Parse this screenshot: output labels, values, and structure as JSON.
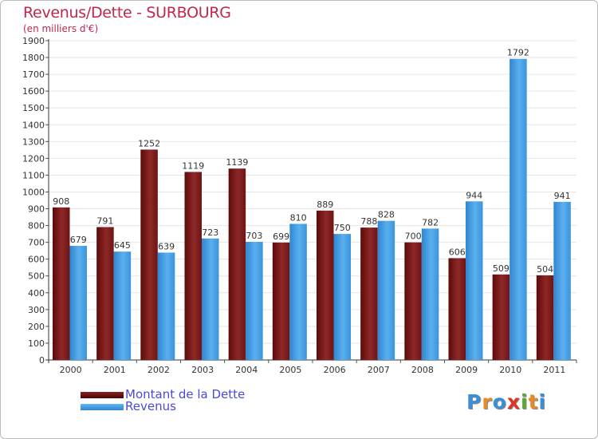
{
  "chart_data": {
    "type": "bar",
    "title": "Revenus/Dette - SURBOURG",
    "subtitle": "(en milliers d'€)",
    "categories": [
      "2000",
      "2001",
      "2002",
      "2003",
      "2004",
      "2005",
      "2006",
      "2007",
      "2008",
      "2009",
      "2010",
      "2011"
    ],
    "series": [
      {
        "name": "Montant de la Dette",
        "color": "#7a1a1a",
        "values": [
          908,
          791,
          1252,
          1119,
          1139,
          699,
          889,
          788,
          700,
          606,
          509,
          504
        ]
      },
      {
        "name": "Revenus",
        "color": "#4aa3e6",
        "values": [
          679,
          645,
          639,
          723,
          703,
          810,
          750,
          828,
          782,
          944,
          1792,
          941
        ]
      }
    ],
    "ylim": [
      0,
      1900
    ],
    "yticks": [
      0,
      100,
      200,
      300,
      400,
      500,
      600,
      700,
      800,
      900,
      1000,
      1100,
      1200,
      1300,
      1400,
      1500,
      1600,
      1700,
      1800,
      1900
    ],
    "grid": true,
    "legend": "bottom-left"
  },
  "logo": {
    "letters": [
      "P",
      "r",
      "o",
      "x",
      "i",
      "t",
      "i"
    ],
    "colors": [
      "#3a8fd6",
      "#e8892a",
      "#3a8fd6",
      "#e0342a",
      "#5aa832",
      "#e8892a",
      "#3a8fd6"
    ]
  }
}
